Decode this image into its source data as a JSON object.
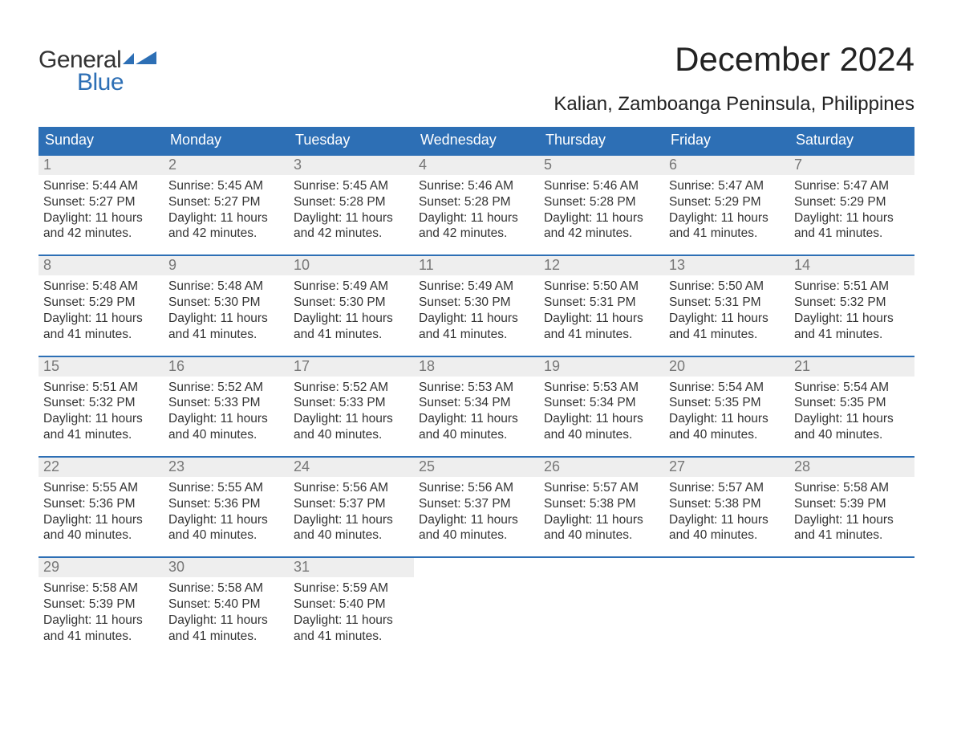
{
  "logo": {
    "word1": "General",
    "word2": "Blue",
    "accent_color": "#2d6fb5"
  },
  "title": "December 2024",
  "location": "Kalian, Zamboanga Peninsula, Philippines",
  "colors": {
    "header_bg": "#2d6fb5",
    "header_text": "#ffffff",
    "daynum_bg": "#eeeeee",
    "daynum_text": "#777777",
    "body_text": "#333333",
    "week_border": "#2d6fb5",
    "page_bg": "#ffffff"
  },
  "typography": {
    "title_fontsize": 42,
    "location_fontsize": 24,
    "dayheader_fontsize": 18,
    "daynum_fontsize": 18,
    "body_fontsize": 15.5
  },
  "day_names": [
    "Sunday",
    "Monday",
    "Tuesday",
    "Wednesday",
    "Thursday",
    "Friday",
    "Saturday"
  ],
  "weeks": [
    [
      {
        "n": "1",
        "sunrise": "5:44 AM",
        "sunset": "5:27 PM",
        "dl1": "Daylight: 11 hours",
        "dl2": "and 42 minutes."
      },
      {
        "n": "2",
        "sunrise": "5:45 AM",
        "sunset": "5:27 PM",
        "dl1": "Daylight: 11 hours",
        "dl2": "and 42 minutes."
      },
      {
        "n": "3",
        "sunrise": "5:45 AM",
        "sunset": "5:28 PM",
        "dl1": "Daylight: 11 hours",
        "dl2": "and 42 minutes."
      },
      {
        "n": "4",
        "sunrise": "5:46 AM",
        "sunset": "5:28 PM",
        "dl1": "Daylight: 11 hours",
        "dl2": "and 42 minutes."
      },
      {
        "n": "5",
        "sunrise": "5:46 AM",
        "sunset": "5:28 PM",
        "dl1": "Daylight: 11 hours",
        "dl2": "and 42 minutes."
      },
      {
        "n": "6",
        "sunrise": "5:47 AM",
        "sunset": "5:29 PM",
        "dl1": "Daylight: 11 hours",
        "dl2": "and 41 minutes."
      },
      {
        "n": "7",
        "sunrise": "5:47 AM",
        "sunset": "5:29 PM",
        "dl1": "Daylight: 11 hours",
        "dl2": "and 41 minutes."
      }
    ],
    [
      {
        "n": "8",
        "sunrise": "5:48 AM",
        "sunset": "5:29 PM",
        "dl1": "Daylight: 11 hours",
        "dl2": "and 41 minutes."
      },
      {
        "n": "9",
        "sunrise": "5:48 AM",
        "sunset": "5:30 PM",
        "dl1": "Daylight: 11 hours",
        "dl2": "and 41 minutes."
      },
      {
        "n": "10",
        "sunrise": "5:49 AM",
        "sunset": "5:30 PM",
        "dl1": "Daylight: 11 hours",
        "dl2": "and 41 minutes."
      },
      {
        "n": "11",
        "sunrise": "5:49 AM",
        "sunset": "5:30 PM",
        "dl1": "Daylight: 11 hours",
        "dl2": "and 41 minutes."
      },
      {
        "n": "12",
        "sunrise": "5:50 AM",
        "sunset": "5:31 PM",
        "dl1": "Daylight: 11 hours",
        "dl2": "and 41 minutes."
      },
      {
        "n": "13",
        "sunrise": "5:50 AM",
        "sunset": "5:31 PM",
        "dl1": "Daylight: 11 hours",
        "dl2": "and 41 minutes."
      },
      {
        "n": "14",
        "sunrise": "5:51 AM",
        "sunset": "5:32 PM",
        "dl1": "Daylight: 11 hours",
        "dl2": "and 41 minutes."
      }
    ],
    [
      {
        "n": "15",
        "sunrise": "5:51 AM",
        "sunset": "5:32 PM",
        "dl1": "Daylight: 11 hours",
        "dl2": "and 41 minutes."
      },
      {
        "n": "16",
        "sunrise": "5:52 AM",
        "sunset": "5:33 PM",
        "dl1": "Daylight: 11 hours",
        "dl2": "and 40 minutes."
      },
      {
        "n": "17",
        "sunrise": "5:52 AM",
        "sunset": "5:33 PM",
        "dl1": "Daylight: 11 hours",
        "dl2": "and 40 minutes."
      },
      {
        "n": "18",
        "sunrise": "5:53 AM",
        "sunset": "5:34 PM",
        "dl1": "Daylight: 11 hours",
        "dl2": "and 40 minutes."
      },
      {
        "n": "19",
        "sunrise": "5:53 AM",
        "sunset": "5:34 PM",
        "dl1": "Daylight: 11 hours",
        "dl2": "and 40 minutes."
      },
      {
        "n": "20",
        "sunrise": "5:54 AM",
        "sunset": "5:35 PM",
        "dl1": "Daylight: 11 hours",
        "dl2": "and 40 minutes."
      },
      {
        "n": "21",
        "sunrise": "5:54 AM",
        "sunset": "5:35 PM",
        "dl1": "Daylight: 11 hours",
        "dl2": "and 40 minutes."
      }
    ],
    [
      {
        "n": "22",
        "sunrise": "5:55 AM",
        "sunset": "5:36 PM",
        "dl1": "Daylight: 11 hours",
        "dl2": "and 40 minutes."
      },
      {
        "n": "23",
        "sunrise": "5:55 AM",
        "sunset": "5:36 PM",
        "dl1": "Daylight: 11 hours",
        "dl2": "and 40 minutes."
      },
      {
        "n": "24",
        "sunrise": "5:56 AM",
        "sunset": "5:37 PM",
        "dl1": "Daylight: 11 hours",
        "dl2": "and 40 minutes."
      },
      {
        "n": "25",
        "sunrise": "5:56 AM",
        "sunset": "5:37 PM",
        "dl1": "Daylight: 11 hours",
        "dl2": "and 40 minutes."
      },
      {
        "n": "26",
        "sunrise": "5:57 AM",
        "sunset": "5:38 PM",
        "dl1": "Daylight: 11 hours",
        "dl2": "and 40 minutes."
      },
      {
        "n": "27",
        "sunrise": "5:57 AM",
        "sunset": "5:38 PM",
        "dl1": "Daylight: 11 hours",
        "dl2": "and 40 minutes."
      },
      {
        "n": "28",
        "sunrise": "5:58 AM",
        "sunset": "5:39 PM",
        "dl1": "Daylight: 11 hours",
        "dl2": "and 41 minutes."
      }
    ],
    [
      {
        "n": "29",
        "sunrise": "5:58 AM",
        "sunset": "5:39 PM",
        "dl1": "Daylight: 11 hours",
        "dl2": "and 41 minutes."
      },
      {
        "n": "30",
        "sunrise": "5:58 AM",
        "sunset": "5:40 PM",
        "dl1": "Daylight: 11 hours",
        "dl2": "and 41 minutes."
      },
      {
        "n": "31",
        "sunrise": "5:59 AM",
        "sunset": "5:40 PM",
        "dl1": "Daylight: 11 hours",
        "dl2": "and 41 minutes."
      },
      {
        "empty": true
      },
      {
        "empty": true
      },
      {
        "empty": true
      },
      {
        "empty": true
      }
    ]
  ],
  "labels": {
    "sunrise_prefix": "Sunrise: ",
    "sunset_prefix": "Sunset: "
  }
}
